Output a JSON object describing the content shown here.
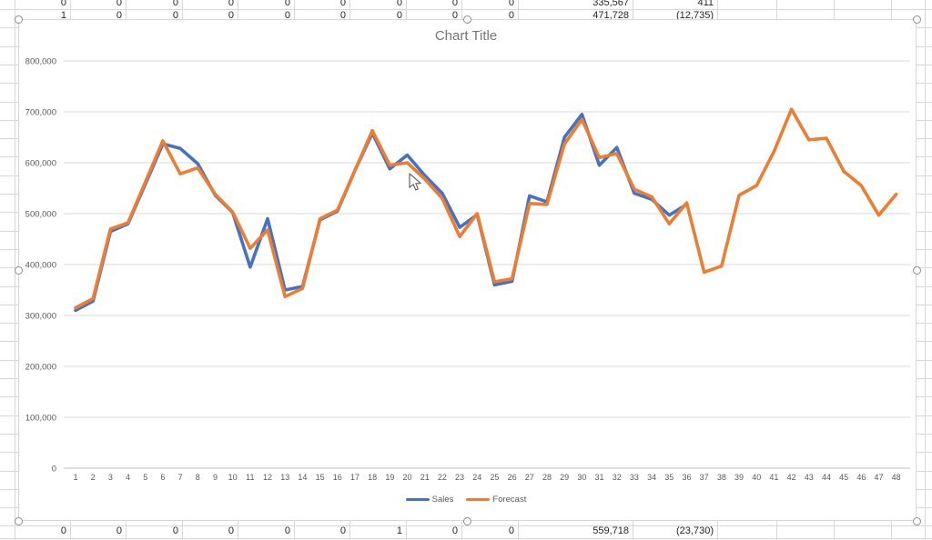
{
  "spreadsheet": {
    "rows": [
      {
        "name": "top-row-1",
        "cells": [
          "0",
          "0",
          "0",
          "0",
          "0",
          "0",
          "0",
          "0",
          "0",
          "335,567",
          "411"
        ]
      },
      {
        "name": "top-row-2",
        "cells": [
          "1",
          "0",
          "0",
          "0",
          "0",
          "0",
          "0",
          "0",
          "0",
          "471,728",
          "(12,735)"
        ]
      },
      {
        "name": "bottom-row",
        "cells": [
          "0",
          "0",
          "0",
          "0",
          "0",
          "0",
          "1",
          "0",
          "0",
          "559,718",
          "(23,730)"
        ]
      }
    ]
  },
  "chart": {
    "title": "Chart Title"
  },
  "chart_data": {
    "type": "line",
    "title": "Chart Title",
    "x": [
      1,
      2,
      3,
      4,
      5,
      6,
      7,
      8,
      9,
      10,
      11,
      12,
      13,
      14,
      15,
      16,
      17,
      18,
      19,
      20,
      21,
      22,
      23,
      24,
      25,
      26,
      27,
      28,
      29,
      30,
      31,
      32,
      33,
      34,
      35,
      36,
      37,
      38,
      39,
      40,
      41,
      42,
      43,
      44,
      45,
      46,
      47,
      48
    ],
    "series": [
      {
        "name": "Sales",
        "color": "#4472C4",
        "values": [
          310000,
          328000,
          465000,
          480000,
          558000,
          637000,
          628000,
          598000,
          536000,
          502000,
          395000,
          490000,
          350000,
          357000,
          488000,
          505000,
          585000,
          658000,
          588000,
          615000,
          575000,
          540000,
          473000,
          498000,
          360000,
          367000,
          535000,
          523000,
          650000,
          695000,
          595000,
          630000,
          540000,
          528000,
          497000,
          518000
        ]
      },
      {
        "name": "Forecast",
        "color": "#ED7D31",
        "values": [
          315000,
          333000,
          470000,
          482000,
          562000,
          643000,
          578000,
          590000,
          538000,
          503000,
          432000,
          468000,
          337000,
          353000,
          490000,
          507000,
          585000,
          663000,
          595000,
          600000,
          568000,
          530000,
          455000,
          500000,
          366000,
          372000,
          520000,
          518000,
          637000,
          685000,
          610000,
          618000,
          548000,
          533000,
          480000,
          521000,
          385000,
          397000,
          536000,
          555000,
          622000,
          705000,
          645000,
          648000,
          583000,
          555000,
          497000,
          538000
        ]
      }
    ],
    "ylim": [
      0,
      800000
    ],
    "yticks": [
      0,
      100000,
      200000,
      300000,
      400000,
      500000,
      600000,
      700000,
      800000
    ],
    "ytick_labels": [
      "0",
      "100,000",
      "200,000",
      "300,000",
      "400,000",
      "500,000",
      "600,000",
      "700,000",
      "800,000"
    ],
    "grid": "horizontal",
    "legend_position": "bottom"
  },
  "colors": {
    "sales": "#4472C4",
    "forecast": "#ED7D31",
    "grid": "#D9D9D9",
    "axis_line": "#BFBFBF",
    "axis_text": "#595959",
    "title_text": "#757575",
    "sheet_line": "#D8D8D8",
    "chart_border": "#D7D7D7"
  }
}
